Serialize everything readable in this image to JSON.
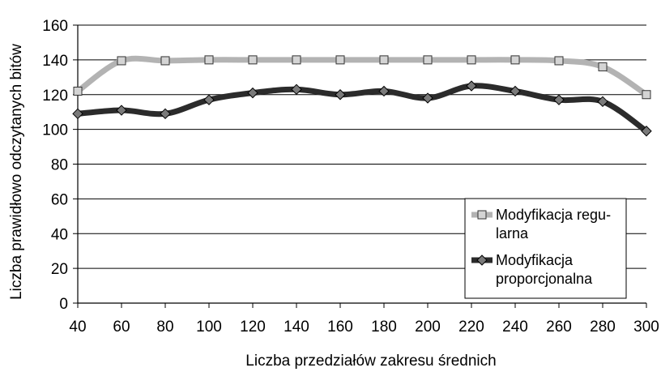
{
  "chart_data": {
    "type": "line",
    "title": "",
    "xlabel": "Liczba przedziałów zakresu średnich",
    "ylabel": "Liczba prawidłowo odczytanych bitów",
    "x": [
      40,
      60,
      80,
      100,
      120,
      140,
      160,
      180,
      200,
      220,
      240,
      260,
      280,
      300
    ],
    "xlim": [
      40,
      300
    ],
    "ylim": [
      0,
      160
    ],
    "yticks": [
      0,
      20,
      40,
      60,
      80,
      100,
      120,
      140,
      160
    ],
    "grid": true,
    "legend_position": "bottom-right",
    "series": [
      {
        "name": "Modyfikacja regularna",
        "legend_lines": [
          "Modyfikacja regu-",
          "larna"
        ],
        "marker": "square",
        "color": "#b3b3b3",
        "values": [
          122,
          139.5,
          139.5,
          140,
          140,
          140,
          140,
          140,
          140,
          140,
          140,
          139.5,
          136,
          120
        ]
      },
      {
        "name": "Modyfikacja proporcjonalna",
        "legend_lines": [
          "Modyfikacja",
          "proporcjonalna"
        ],
        "marker": "diamond",
        "color": "#2b2b2b",
        "values": [
          109,
          111,
          109,
          117,
          121,
          123,
          120,
          122,
          118,
          125,
          122,
          117,
          116,
          99
        ]
      }
    ]
  }
}
